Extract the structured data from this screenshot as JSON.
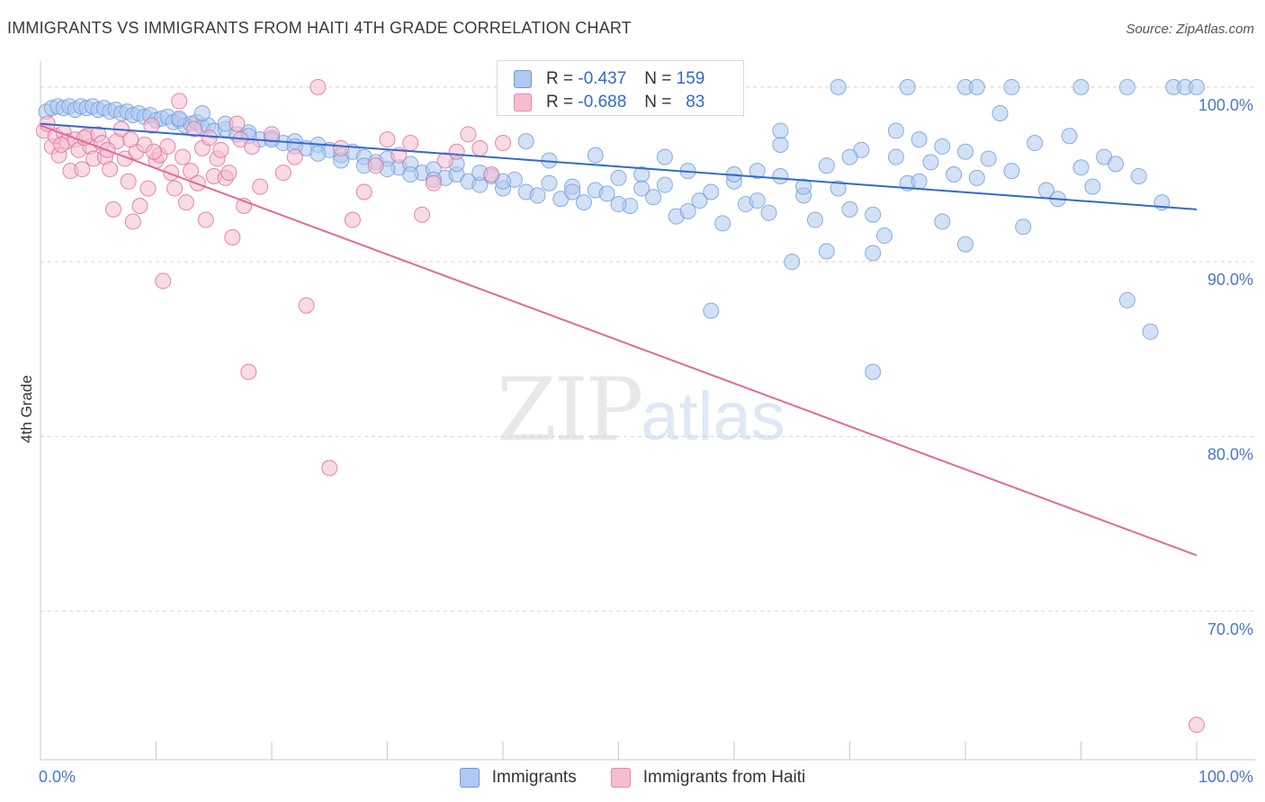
{
  "title": "IMMIGRANTS VS IMMIGRANTS FROM HAITI 4TH GRADE CORRELATION CHART",
  "source": "Source: ZipAtlas.com",
  "watermark": {
    "zip": "ZIP",
    "atlas": "atlas"
  },
  "legend": {
    "r_label": "R =",
    "n_label": "N =",
    "rows": [
      {
        "r": "-0.437",
        "n": "159",
        "fill": "#aec8f0",
        "stroke": "#6f9ad8"
      },
      {
        "r": "-0.688",
        "n": "83",
        "fill": "#f6bcd0",
        "stroke": "#e889aa"
      }
    ]
  },
  "bottom_legend": [
    {
      "label": "Immigrants",
      "fill": "#aec8f0",
      "stroke": "#6f9ad8"
    },
    {
      "label": "Immigrants from Haiti",
      "fill": "#f6bcd0",
      "stroke": "#e889aa"
    }
  ],
  "chart_data": {
    "type": "scatter",
    "title": "IMMIGRANTS VS IMMIGRANTS FROM HAITI 4TH GRADE CORRELATION CHART",
    "xlabel": "",
    "ylabel": "4th Grade",
    "xlim": [
      0,
      100
    ],
    "ylim": [
      61.5,
      102
    ],
    "x_tick_labels": [
      "0.0%",
      "100.0%"
    ],
    "y_ticks": [
      70,
      80,
      90,
      100
    ],
    "y_tick_labels": [
      "70.0%",
      "80.0%",
      "90.0%",
      "100.0%"
    ],
    "grid": "horizontal dashed",
    "legend_position": "top-center",
    "series": [
      {
        "name": "Immigrants",
        "color": "#6f9ad8",
        "fill": "#aec8f0",
        "trend": {
          "x": [
            0,
            100
          ],
          "y": [
            97.9,
            93.0
          ]
        },
        "points": [
          [
            0.5,
            98.6
          ],
          [
            1,
            98.8
          ],
          [
            1.5,
            98.9
          ],
          [
            2,
            98.8
          ],
          [
            2.5,
            98.9
          ],
          [
            3,
            98.7
          ],
          [
            3.5,
            98.9
          ],
          [
            4,
            98.8
          ],
          [
            4.5,
            98.9
          ],
          [
            5,
            98.7
          ],
          [
            5.5,
            98.8
          ],
          [
            6,
            98.6
          ],
          [
            6.5,
            98.7
          ],
          [
            7,
            98.5
          ],
          [
            7.5,
            98.6
          ],
          [
            8,
            98.4
          ],
          [
            8.5,
            98.5
          ],
          [
            9,
            98.3
          ],
          [
            9.5,
            98.4
          ],
          [
            10,
            98.1
          ],
          [
            10.5,
            98.2
          ],
          [
            11,
            98.3
          ],
          [
            11.5,
            98.0
          ],
          [
            12,
            98.1
          ],
          [
            12.5,
            97.8
          ],
          [
            13,
            97.9
          ],
          [
            13.5,
            98.0
          ],
          [
            14,
            97.7
          ],
          [
            14.5,
            97.8
          ],
          [
            15,
            97.5
          ],
          [
            16,
            97.6
          ],
          [
            17,
            97.3
          ],
          [
            18,
            97.4
          ],
          [
            19,
            97.0
          ],
          [
            20,
            97.1
          ],
          [
            21,
            96.8
          ],
          [
            22,
            96.9
          ],
          [
            23,
            96.5
          ],
          [
            24,
            96.7
          ],
          [
            25,
            96.4
          ],
          [
            26,
            96.1
          ],
          [
            27,
            96.3
          ],
          [
            28,
            96.0
          ],
          [
            29,
            95.7
          ],
          [
            30,
            95.9
          ],
          [
            31,
            95.4
          ],
          [
            32,
            95.6
          ],
          [
            33,
            95.1
          ],
          [
            34,
            95.3
          ],
          [
            35,
            94.8
          ],
          [
            36,
            95.0
          ],
          [
            37,
            94.6
          ],
          [
            38,
            94.4
          ],
          [
            39,
            94.9
          ],
          [
            40,
            94.2
          ],
          [
            41,
            94.7
          ],
          [
            42,
            94.0
          ],
          [
            43,
            93.8
          ],
          [
            44,
            94.5
          ],
          [
            45,
            93.6
          ],
          [
            46,
            94.3
          ],
          [
            47,
            93.4
          ],
          [
            48,
            94.1
          ],
          [
            49,
            93.9
          ],
          [
            50,
            94.8
          ],
          [
            51,
            93.2
          ],
          [
            52,
            95.0
          ],
          [
            53,
            93.7
          ],
          [
            54,
            94.4
          ],
          [
            55,
            92.6
          ],
          [
            56,
            92.9
          ],
          [
            57,
            93.5
          ],
          [
            58,
            94.0
          ],
          [
            59,
            92.2
          ],
          [
            60,
            94.6
          ],
          [
            61,
            93.3
          ],
          [
            62,
            95.2
          ],
          [
            63,
            92.8
          ],
          [
            64,
            94.9
          ],
          [
            65,
            90.0
          ],
          [
            66,
            93.8
          ],
          [
            67,
            92.4
          ],
          [
            68,
            95.5
          ],
          [
            69,
            94.2
          ],
          [
            70,
            93.0
          ],
          [
            71,
            96.4
          ],
          [
            72,
            92.7
          ],
          [
            73,
            91.5
          ],
          [
            74,
            96.0
          ],
          [
            75,
            94.5
          ],
          [
            76,
            97.0
          ],
          [
            77,
            95.7
          ],
          [
            78,
            96.6
          ],
          [
            79,
            95.0
          ],
          [
            80,
            96.3
          ],
          [
            81,
            94.8
          ],
          [
            82,
            95.9
          ],
          [
            83,
            98.5
          ],
          [
            84,
            95.2
          ],
          [
            85,
            92.0
          ],
          [
            86,
            96.8
          ],
          [
            87,
            94.1
          ],
          [
            88,
            93.6
          ],
          [
            89,
            97.2
          ],
          [
            90,
            95.4
          ],
          [
            91,
            94.3
          ],
          [
            92,
            96.0
          ],
          [
            93,
            95.6
          ],
          [
            94,
            87.8
          ],
          [
            95,
            94.9
          ],
          [
            96,
            86.0
          ],
          [
            97,
            93.4
          ],
          [
            98,
            100
          ],
          [
            99,
            100
          ],
          [
            100,
            100
          ],
          [
            12,
            98.2
          ],
          [
            14,
            98.5
          ],
          [
            16,
            97.9
          ],
          [
            18,
            97.2
          ],
          [
            20,
            97.0
          ],
          [
            22,
            96.6
          ],
          [
            24,
            96.2
          ],
          [
            26,
            95.8
          ],
          [
            28,
            95.5
          ],
          [
            30,
            95.3
          ],
          [
            32,
            95.0
          ],
          [
            34,
            94.7
          ],
          [
            36,
            95.6
          ],
          [
            38,
            95.1
          ],
          [
            40,
            94.6
          ],
          [
            42,
            96.9
          ],
          [
            44,
            95.8
          ],
          [
            46,
            94.0
          ],
          [
            48,
            96.1
          ],
          [
            50,
            93.3
          ],
          [
            52,
            94.2
          ],
          [
            54,
            96.0
          ],
          [
            56,
            95.2
          ],
          [
            58,
            87.2
          ],
          [
            60,
            95.0
          ],
          [
            62,
            93.5
          ],
          [
            64,
            96.7
          ],
          [
            66,
            94.3
          ],
          [
            68,
            90.6
          ],
          [
            70,
            96.0
          ],
          [
            72,
            90.5
          ],
          [
            74,
            97.5
          ],
          [
            76,
            94.6
          ],
          [
            78,
            92.3
          ],
          [
            80,
            91.0
          ],
          [
            69,
            100
          ],
          [
            75,
            100
          ],
          [
            80,
            100
          ],
          [
            81,
            100
          ],
          [
            84,
            100
          ],
          [
            90,
            100
          ],
          [
            94,
            100
          ],
          [
            72,
            83.7
          ],
          [
            64,
            97.5
          ]
        ]
      },
      {
        "name": "Immigrants from Haiti",
        "color": "#e06a96",
        "fill": "#f6bcd0",
        "trend": {
          "x": [
            0,
            100
          ],
          "y": [
            97.8,
            73.2
          ]
        },
        "points": [
          [
            0.3,
            97.5
          ],
          [
            0.6,
            97.9
          ],
          [
            1,
            96.6
          ],
          [
            1.3,
            97.2
          ],
          [
            1.6,
            96.1
          ],
          [
            2,
            97.4
          ],
          [
            2.3,
            96.9
          ],
          [
            2.6,
            95.2
          ],
          [
            3,
            97.0
          ],
          [
            3.3,
            96.4
          ],
          [
            3.6,
            95.3
          ],
          [
            4,
            97.2
          ],
          [
            4.3,
            96.6
          ],
          [
            4.6,
            95.9
          ],
          [
            5,
            97.3
          ],
          [
            5.3,
            96.8
          ],
          [
            5.6,
            96.0
          ],
          [
            6,
            95.3
          ],
          [
            6.3,
            93.0
          ],
          [
            6.6,
            96.9
          ],
          [
            7,
            97.6
          ],
          [
            7.3,
            95.9
          ],
          [
            7.6,
            94.6
          ],
          [
            8,
            92.3
          ],
          [
            8.3,
            96.3
          ],
          [
            8.6,
            93.2
          ],
          [
            9,
            96.7
          ],
          [
            9.3,
            94.2
          ],
          [
            9.6,
            97.8
          ],
          [
            10,
            95.8
          ],
          [
            10.3,
            96.1
          ],
          [
            10.6,
            88.9
          ],
          [
            11,
            96.6
          ],
          [
            11.3,
            95.1
          ],
          [
            11.6,
            94.2
          ],
          [
            12,
            99.2
          ],
          [
            12.3,
            96.0
          ],
          [
            12.6,
            93.4
          ],
          [
            13,
            95.2
          ],
          [
            13.3,
            97.6
          ],
          [
            13.6,
            94.5
          ],
          [
            14,
            96.5
          ],
          [
            14.3,
            92.4
          ],
          [
            14.6,
            97.1
          ],
          [
            15,
            94.9
          ],
          [
            15.3,
            95.9
          ],
          [
            15.6,
            96.4
          ],
          [
            16,
            94.8
          ],
          [
            16.3,
            95.1
          ],
          [
            16.6,
            91.4
          ],
          [
            17,
            97.9
          ],
          [
            17.3,
            97.0
          ],
          [
            17.6,
            93.2
          ],
          [
            18,
            83.7
          ],
          [
            18.3,
            96.6
          ],
          [
            19,
            94.3
          ],
          [
            20,
            97.3
          ],
          [
            21,
            95.1
          ],
          [
            22,
            96.0
          ],
          [
            23,
            87.5
          ],
          [
            24,
            100
          ],
          [
            25,
            78.2
          ],
          [
            26,
            96.5
          ],
          [
            27,
            92.4
          ],
          [
            28,
            94.0
          ],
          [
            29,
            95.5
          ],
          [
            30,
            97.0
          ],
          [
            31,
            96.1
          ],
          [
            32,
            96.8
          ],
          [
            33,
            92.7
          ],
          [
            34,
            94.5
          ],
          [
            35,
            95.8
          ],
          [
            36,
            96.3
          ],
          [
            37,
            97.3
          ],
          [
            38,
            96.5
          ],
          [
            39,
            95.0
          ],
          [
            40,
            96.8
          ],
          [
            1.8,
            96.7
          ],
          [
            3.8,
            97.1
          ],
          [
            5.8,
            96.4
          ],
          [
            7.8,
            97.0
          ],
          [
            9.8,
            96.3
          ],
          [
            100,
            63.5
          ]
        ]
      }
    ]
  }
}
